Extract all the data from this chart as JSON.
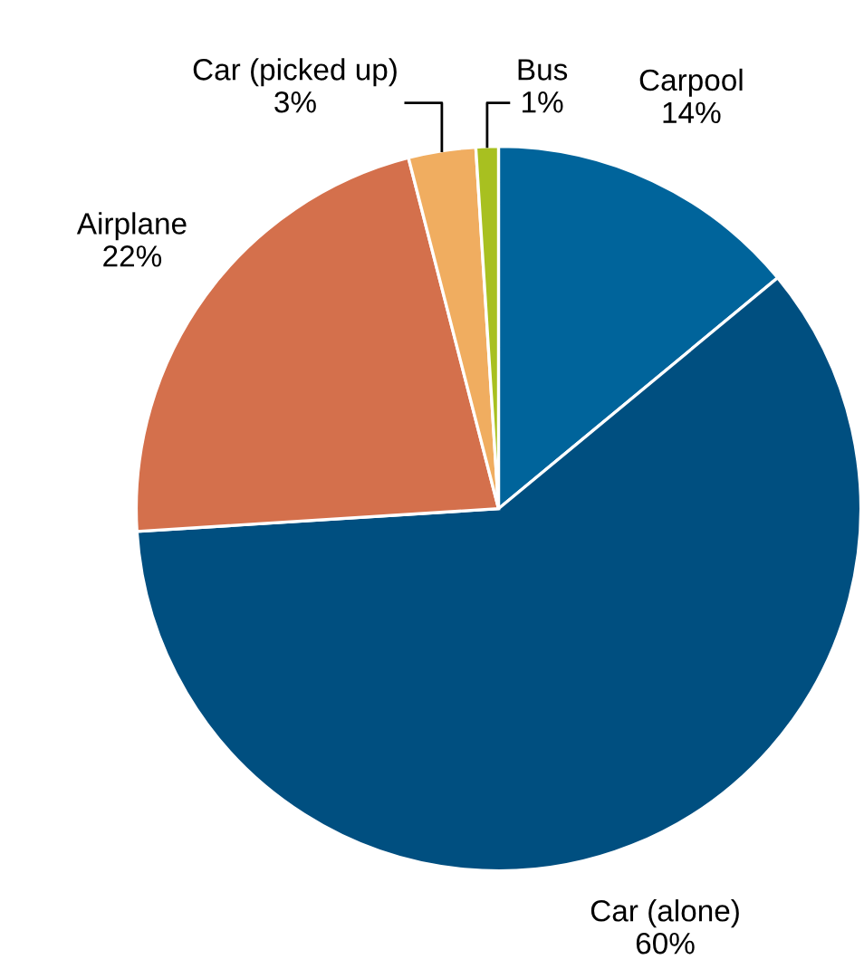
{
  "chart_data": {
    "type": "pie",
    "categories": [
      "Carpool",
      "Car (alone)",
      "Airplane",
      "Car (picked up)",
      "Bus"
    ],
    "values": [
      14,
      60,
      22,
      3,
      1
    ],
    "value_labels": [
      "14%",
      "60%",
      "22%",
      "3%",
      "1%"
    ],
    "colors": [
      "#00649b",
      "#004f80",
      "#d4704c",
      "#f0ad60",
      "#a8c020"
    ],
    "legend": false
  }
}
